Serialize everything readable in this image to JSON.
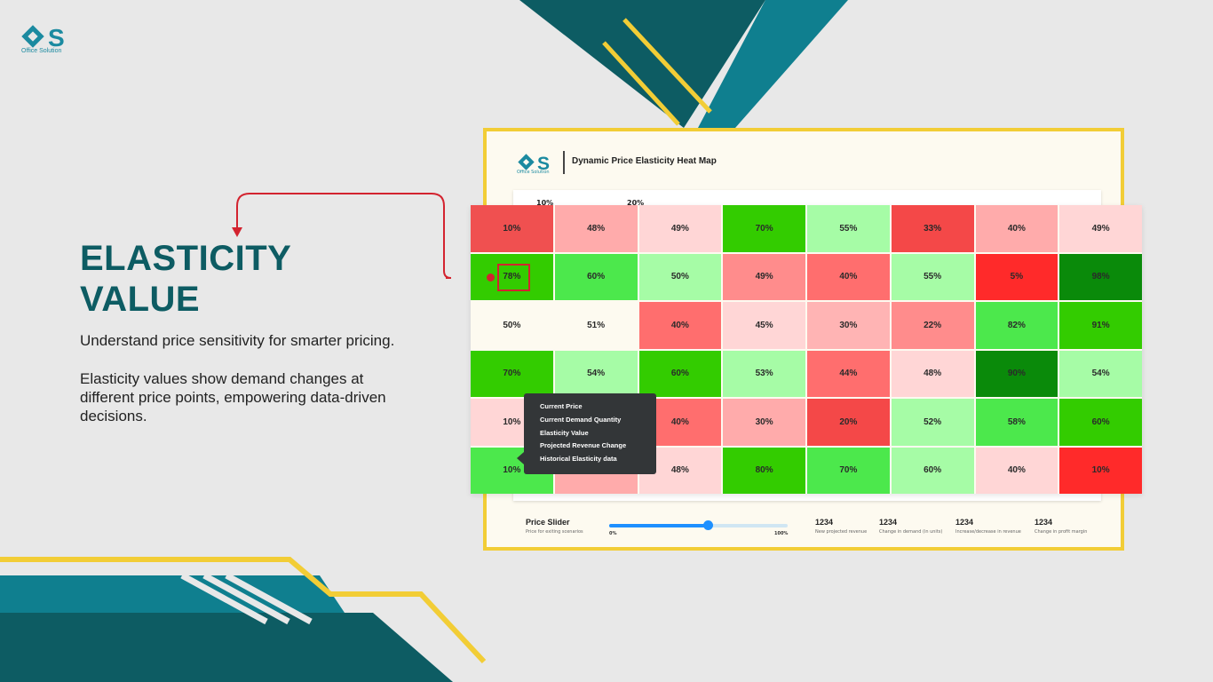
{
  "colors": {
    "teal_dark": "#0d5c63",
    "teal_light": "#0f7f8f",
    "yellow": "#f2cd36",
    "accent_red": "#d3232f"
  },
  "brand": {
    "name": "Office Solution",
    "logo_icon": "office-solution-logo-icon"
  },
  "heading": {
    "line1": "ELASTICITY",
    "line2": "VALUE"
  },
  "description": {
    "p1": "Understand price sensitivity for smarter pricing.",
    "p2": "Elasticity values show demand changes at different price points, empowering data-driven decisions."
  },
  "card": {
    "brand_name": "Office Solution",
    "title": "Dynamic Price Elasticity Heat Map",
    "peek_1": "10%",
    "peek_2": "20%"
  },
  "heatmap": {
    "rows": [
      [
        {
          "v": "10%",
          "c": "#f05050"
        },
        {
          "v": "48%",
          "c": "#ffabab"
        },
        {
          "v": "49%",
          "c": "#ffd6d6"
        },
        {
          "v": "70%",
          "c": "#33cc00"
        },
        {
          "v": "55%",
          "c": "#a6fca6"
        },
        {
          "v": "33%",
          "c": "#f44848"
        },
        {
          "v": "40%",
          "c": "#ffabab"
        },
        {
          "v": "49%",
          "c": "#ffd6d6"
        }
      ],
      [
        {
          "v": "78%",
          "c": "#33cc00"
        },
        {
          "v": "60%",
          "c": "#4ce84c"
        },
        {
          "v": "50%",
          "c": "#a6fca6"
        },
        {
          "v": "49%",
          "c": "#ff8c8c"
        },
        {
          "v": "40%",
          "c": "#ff6e6e"
        },
        {
          "v": "55%",
          "c": "#a6fca6"
        },
        {
          "v": "5%",
          "c": "#ff2a2a"
        },
        {
          "v": "98%",
          "c": "#0a8a0a"
        }
      ],
      [
        {
          "v": "50%",
          "c": "#fdfaf0"
        },
        {
          "v": "51%",
          "c": "#fdfaf0"
        },
        {
          "v": "40%",
          "c": "#ff6e6e"
        },
        {
          "v": "45%",
          "c": "#ffd6d6"
        },
        {
          "v": "30%",
          "c": "#ffb4b4"
        },
        {
          "v": "22%",
          "c": "#ff8c8c"
        },
        {
          "v": "82%",
          "c": "#4ce84c"
        },
        {
          "v": "91%",
          "c": "#33cc00"
        }
      ],
      [
        {
          "v": "70%",
          "c": "#33cc00"
        },
        {
          "v": "54%",
          "c": "#a6fca6"
        },
        {
          "v": "60%",
          "c": "#33cc00"
        },
        {
          "v": "53%",
          "c": "#a6fca6"
        },
        {
          "v": "44%",
          "c": "#ff6e6e"
        },
        {
          "v": "48%",
          "c": "#ffd6d6"
        },
        {
          "v": "90%",
          "c": "#0a8a0a"
        },
        {
          "v": "54%",
          "c": "#a6fca6"
        }
      ],
      [
        {
          "v": "10%",
          "c": "#ffd6d6"
        },
        {
          "v": "",
          "c": "#ffd6d6"
        },
        {
          "v": "40%",
          "c": "#ff6e6e"
        },
        {
          "v": "30%",
          "c": "#ffabab"
        },
        {
          "v": "20%",
          "c": "#f44848"
        },
        {
          "v": "52%",
          "c": "#a6fca6"
        },
        {
          "v": "58%",
          "c": "#4ce84c"
        },
        {
          "v": "60%",
          "c": "#33cc00"
        }
      ],
      [
        {
          "v": "10%",
          "c": "#4ce84c"
        },
        {
          "v": "",
          "c": "#ffabab"
        },
        {
          "v": "48%",
          "c": "#ffd6d6"
        },
        {
          "v": "80%",
          "c": "#33cc00"
        },
        {
          "v": "70%",
          "c": "#4ce84c"
        },
        {
          "v": "60%",
          "c": "#a6fca6"
        },
        {
          "v": "40%",
          "c": "#ffd6d6"
        },
        {
          "v": "10%",
          "c": "#ff2a2a"
        }
      ]
    ]
  },
  "tooltip": {
    "items": [
      "Current Price",
      "Current Demand Quantity",
      "Elasticity Value",
      "Projected Revenue Change",
      "Historical Elasticity data"
    ]
  },
  "slider": {
    "title": "Price Slider",
    "subtitle": "Price for exiting scenarios",
    "min_label": "0%",
    "max_label": "100%",
    "value_fraction": 0.55
  },
  "stats": [
    {
      "value": "1234",
      "label": "New projected revenue"
    },
    {
      "value": "1234",
      "label": "Change in demand (in units)"
    },
    {
      "value": "1234",
      "label": "Increase/decrease in revenue"
    },
    {
      "value": "1234",
      "label": "Change in profit margin"
    }
  ]
}
